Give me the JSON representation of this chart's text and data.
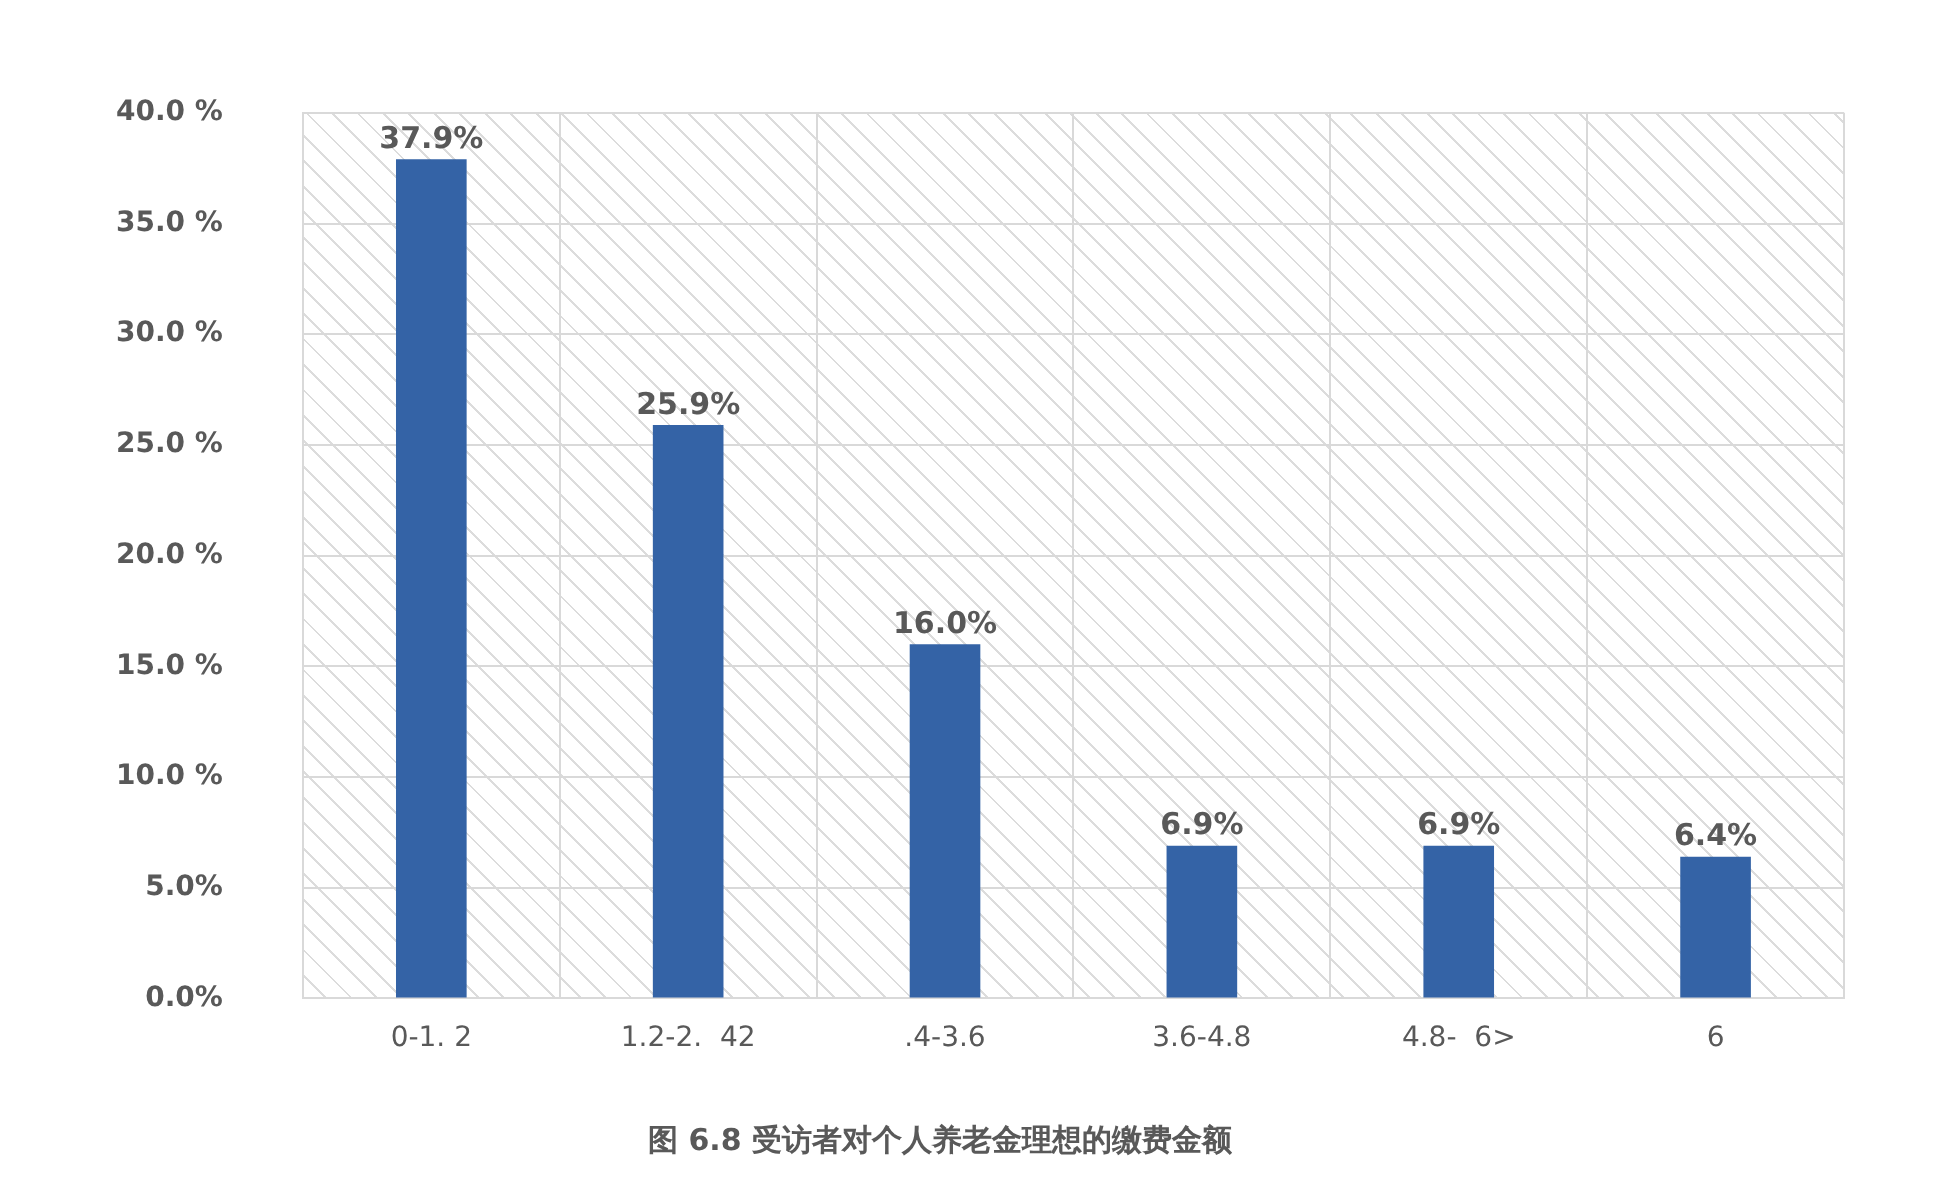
{
  "chart_data": {
    "type": "bar",
    "title": "图 6.8 受访者对个人养老金理想的缴费金额",
    "categories": [
      "0-1. 2",
      "1.2-2.  42",
      ".4-3.6",
      "3.6-4.8",
      "4.8-  6>",
      "6"
    ],
    "series": [
      {
        "color": "#3463a6",
        "values": [
          37.9,
          25.9,
          16.0,
          6.9,
          6.9,
          6.4
        ],
        "value_labels": [
          "37.9%",
          "25.9%",
          "16.0%",
          "6.9%",
          "6.9%",
          "6.4%"
        ]
      }
    ],
    "ylim": [
      0,
      40
    ],
    "yticks": [
      {
        "value": 0,
        "label": "0.0%"
      },
      {
        "value": 5,
        "label": "5.0%"
      },
      {
        "value": 10,
        "label": "10.0 %"
      },
      {
        "value": 15,
        "label": "15.0 %"
      },
      {
        "value": 20,
        "label": "20.0 %"
      },
      {
        "value": 25,
        "label": "25.0 %"
      },
      {
        "value": 30,
        "label": "30.0 %"
      },
      {
        "value": 35,
        "label": "35.0 %"
      },
      {
        "value": 40,
        "label": "40.0 %"
      }
    ],
    "grid": true,
    "legend": false
  }
}
